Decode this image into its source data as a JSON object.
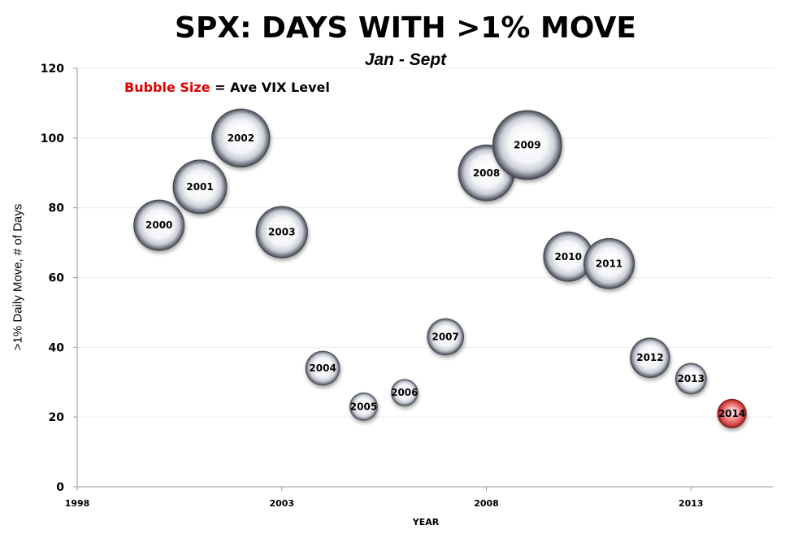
{
  "title": "SPX: DAYS WITH >1% MOVE",
  "subtitle": "Jan - Sept",
  "legend_note": {
    "highlight": "Bubble Size",
    "rest": " = Ave VIX Level",
    "highlight_color": "#e00000"
  },
  "chart_data": {
    "type": "scatter",
    "subtype": "bubble",
    "title": "SPX: DAYS WITH >1% MOVE",
    "subtitle": "Jan - Sept",
    "xlabel": "YEAR",
    "ylabel": ">1% Daily Move, # of Days",
    "xlim": [
      1998,
      2015
    ],
    "ylim": [
      0,
      120
    ],
    "x_ticks": [
      1998,
      2003,
      2008,
      2013
    ],
    "y_ticks": [
      0,
      20,
      40,
      60,
      80,
      100,
      120
    ],
    "grid": true,
    "bubble_size_meaning": "Ave VIX Level",
    "colors": {
      "bubble": "#c8cbd2",
      "highlight_bubble": "#d84848"
    },
    "points": [
      {
        "label": "2000",
        "x": 2000,
        "y": 75,
        "size": 23.5
      },
      {
        "label": "2001",
        "x": 2001,
        "y": 86,
        "size": 25.0
      },
      {
        "label": "2002",
        "x": 2002,
        "y": 100,
        "size": 27.0
      },
      {
        "label": "2003",
        "x": 2003,
        "y": 73,
        "size": 24.0
      },
      {
        "label": "2004",
        "x": 2004,
        "y": 34,
        "size": 16.0
      },
      {
        "label": "2005",
        "x": 2005,
        "y": 23,
        "size": 13.0
      },
      {
        "label": "2006",
        "x": 2006,
        "y": 27,
        "size": 12.5
      },
      {
        "label": "2007",
        "x": 2007,
        "y": 43,
        "size": 17.0
      },
      {
        "label": "2008",
        "x": 2008,
        "y": 90,
        "size": 26.0
      },
      {
        "label": "2009",
        "x": 2009,
        "y": 98,
        "size": 32.0
      },
      {
        "label": "2010",
        "x": 2010,
        "y": 66,
        "size": 23.0
      },
      {
        "label": "2011",
        "x": 2011,
        "y": 64,
        "size": 23.5
      },
      {
        "label": "2012",
        "x": 2012,
        "y": 37,
        "size": 18.5
      },
      {
        "label": "2013",
        "x": 2013,
        "y": 31,
        "size": 14.5
      },
      {
        "label": "2014",
        "x": 2014,
        "y": 21,
        "size": 13.5,
        "highlight": true
      }
    ]
  }
}
